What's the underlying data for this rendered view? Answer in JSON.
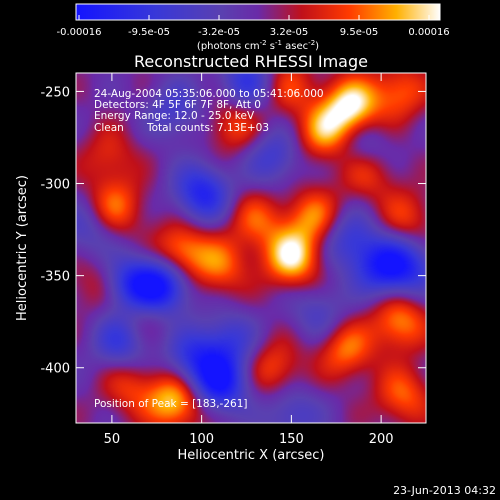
{
  "chart_data": {
    "type": "heatmap",
    "title": "Reconstructed RHESSI Image",
    "xlabel": "Heliocentric X (arcsec)",
    "ylabel": "Heliocentric Y (arcsec)",
    "xlim": [
      30,
      225
    ],
    "ylim": [
      -430,
      -240
    ],
    "xticks": [
      50,
      100,
      150,
      200
    ],
    "yticks": [
      -250,
      -300,
      -350,
      -400
    ],
    "colorbar": {
      "colormap": "blue-purple-red-yellow-white",
      "range": [
        -0.00016,
        0.00016
      ],
      "ticks": [
        "-0.00016",
        "-9.5e-05",
        "-3.2e-05",
        "3.2e-05",
        "9.5e-05",
        "0.00016"
      ],
      "unit_base": "(photons cm",
      "unit_sup1": "-2",
      "unit_mid": " s",
      "unit_sup2": "-1",
      "unit_mid2": " asec",
      "unit_sup3": "-2",
      "unit_end": ")"
    },
    "annotations": [
      "24-Aug-2004 05:35:06.000 to 05:41:06.000",
      "Detectors: 4F 5F 6F 7F 8F, Att 0",
      "Energy Range: 12.0 - 25.0 keV",
      "Clean",
      "Total counts: 7.13E+03"
    ],
    "peak_label": "Position of Peak = [183,-261]",
    "peak_position": [
      183,
      -261
    ],
    "sources": [
      {
        "x": 183,
        "y": -258,
        "value": 0.00016
      },
      {
        "x": 168,
        "y": -272,
        "value": 0.00011
      },
      {
        "x": 210,
        "y": -250,
        "value": 9e-05
      },
      {
        "x": 148,
        "y": -247,
        "value": 7e-05
      },
      {
        "x": 118,
        "y": -268,
        "value": 8e-05
      },
      {
        "x": 150,
        "y": -340,
        "value": 0.00015
      },
      {
        "x": 162,
        "y": -318,
        "value": 0.0001
      },
      {
        "x": 88,
        "y": -337,
        "value": 0.00012
      },
      {
        "x": 110,
        "y": -345,
        "value": 9e-05
      },
      {
        "x": 130,
        "y": -320,
        "value": 8e-05
      },
      {
        "x": 52,
        "y": -312,
        "value": 9e-05
      },
      {
        "x": 48,
        "y": -285,
        "value": 6e-05
      },
      {
        "x": 192,
        "y": -293,
        "value": 8e-05
      },
      {
        "x": 214,
        "y": -318,
        "value": 7e-05
      },
      {
        "x": 210,
        "y": -375,
        "value": 0.00011
      },
      {
        "x": 180,
        "y": -390,
        "value": 0.0001
      },
      {
        "x": 212,
        "y": -415,
        "value": 9e-05
      },
      {
        "x": 140,
        "y": -400,
        "value": 8e-05
      },
      {
        "x": 85,
        "y": -418,
        "value": 0.00014
      },
      {
        "x": 60,
        "y": -410,
        "value": 7e-05
      },
      {
        "x": 65,
        "y": -372,
        "value": 5e-05
      },
      {
        "x": 40,
        "y": -355,
        "value": 5e-05
      },
      {
        "x": 60,
        "y": -355,
        "value": -0.00012
      },
      {
        "x": 78,
        "y": -355,
        "value": -0.00016
      },
      {
        "x": 100,
        "y": -305,
        "value": -0.00013
      },
      {
        "x": 55,
        "y": -385,
        "value": -0.0001
      },
      {
        "x": 115,
        "y": -385,
        "value": -8e-05
      },
      {
        "x": 95,
        "y": -395,
        "value": -0.0001
      },
      {
        "x": 200,
        "y": -345,
        "value": -0.00012
      },
      {
        "x": 215,
        "y": -345,
        "value": -0.0001
      },
      {
        "x": 110,
        "y": -408,
        "value": -0.00015
      },
      {
        "x": 125,
        "y": -245,
        "value": -0.0001
      },
      {
        "x": 190,
        "y": -280,
        "value": -7e-05
      },
      {
        "x": 182,
        "y": -330,
        "value": -9e-05
      },
      {
        "x": 140,
        "y": -285,
        "value": -8e-05
      },
      {
        "x": 165,
        "y": -370,
        "value": -6e-05
      },
      {
        "x": 150,
        "y": -425,
        "value": -7e-05
      },
      {
        "x": 35,
        "y": -325,
        "value": -6e-05
      },
      {
        "x": 85,
        "y": -260,
        "value": -7e-05
      }
    ]
  },
  "footer": {
    "date": "23-Jun-2013 04:32"
  },
  "colors": {
    "background": "#000000",
    "text": "#ffffff"
  }
}
